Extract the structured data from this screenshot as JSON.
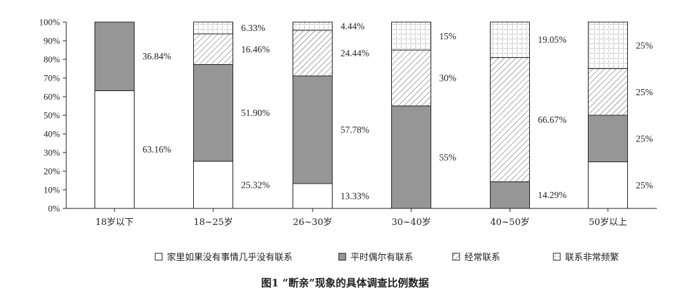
{
  "chart_data": {
    "type": "bar",
    "stacked": true,
    "percent_stacked": true,
    "categories": [
      "18岁以下",
      "18~25岁",
      "26~30岁",
      "30~40岁",
      "40~50岁",
      "50岁以上"
    ],
    "series": [
      {
        "name": "家里如果没有事情几乎没有联系",
        "values": [
          63.16,
          25.32,
          13.33,
          0,
          0,
          25
        ],
        "labels": [
          "63.16%",
          "25.32%",
          "13.33%",
          "",
          "",
          "25%"
        ],
        "fill": "white"
      },
      {
        "name": "平时偶尔有联系",
        "values": [
          36.84,
          51.9,
          57.78,
          55,
          14.29,
          25
        ],
        "labels": [
          "36.84%",
          "51.90%",
          "57.78%",
          "55%",
          "14.29%",
          "25%"
        ],
        "fill": "gray"
      },
      {
        "name": "经常联系",
        "values": [
          0,
          16.46,
          24.44,
          30,
          66.67,
          25
        ],
        "labels": [
          "",
          "16.46%",
          "24.44%",
          "30%",
          "66.67%",
          "25%"
        ],
        "fill": "hatch"
      },
      {
        "name": "联系非常频繁",
        "values": [
          0,
          6.33,
          4.44,
          15,
          19.05,
          25
        ],
        "labels": [
          "",
          "6.33%",
          "4.44%",
          "15%",
          "19.05%",
          "25%"
        ],
        "fill": "grid"
      }
    ],
    "yticks": [
      "0%",
      "10%",
      "20%",
      "30%",
      "40%",
      "50%",
      "60%",
      "70%",
      "80%",
      "90%",
      "100%"
    ],
    "ylim": [
      0,
      100
    ],
    "legend_position": "bottom",
    "grid": false,
    "caption": "图1 “断亲”现象的具体调查比例数据"
  },
  "colors": {
    "gray": "#969696",
    "outline": "#222222",
    "hatch_stroke": "#555555",
    "grid_stroke": "#8a8a8a"
  }
}
